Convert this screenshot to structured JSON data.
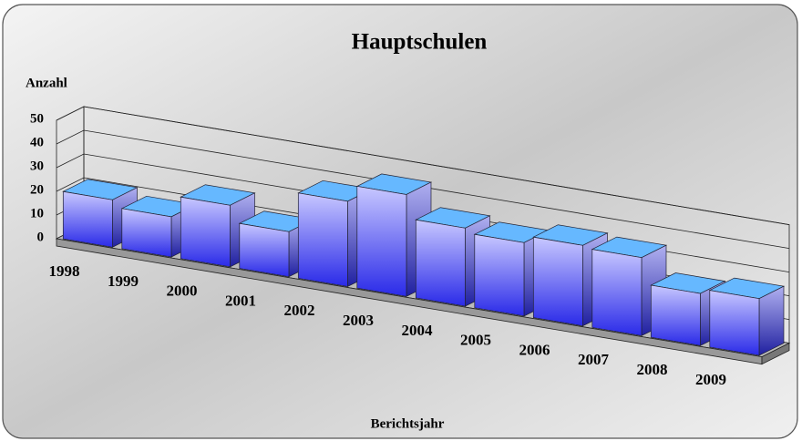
{
  "chart_data": {
    "type": "bar3d",
    "title": "Hauptschulen",
    "y_label": "Anzahl",
    "x_label": "Berichtsjahr",
    "categories": [
      "1998",
      "1999",
      "2000",
      "2001",
      "2002",
      "2003",
      "2004",
      "2005",
      "2006",
      "2007",
      "2008",
      "2009"
    ],
    "values": [
      20,
      17,
      26,
      19,
      36,
      43,
      33,
      31,
      34,
      33,
      22,
      24
    ],
    "color": "#3a3af0",
    "ylim": [
      0,
      50
    ],
    "yticks": [
      0,
      10,
      20,
      30,
      40,
      50
    ],
    "grid": true
  }
}
